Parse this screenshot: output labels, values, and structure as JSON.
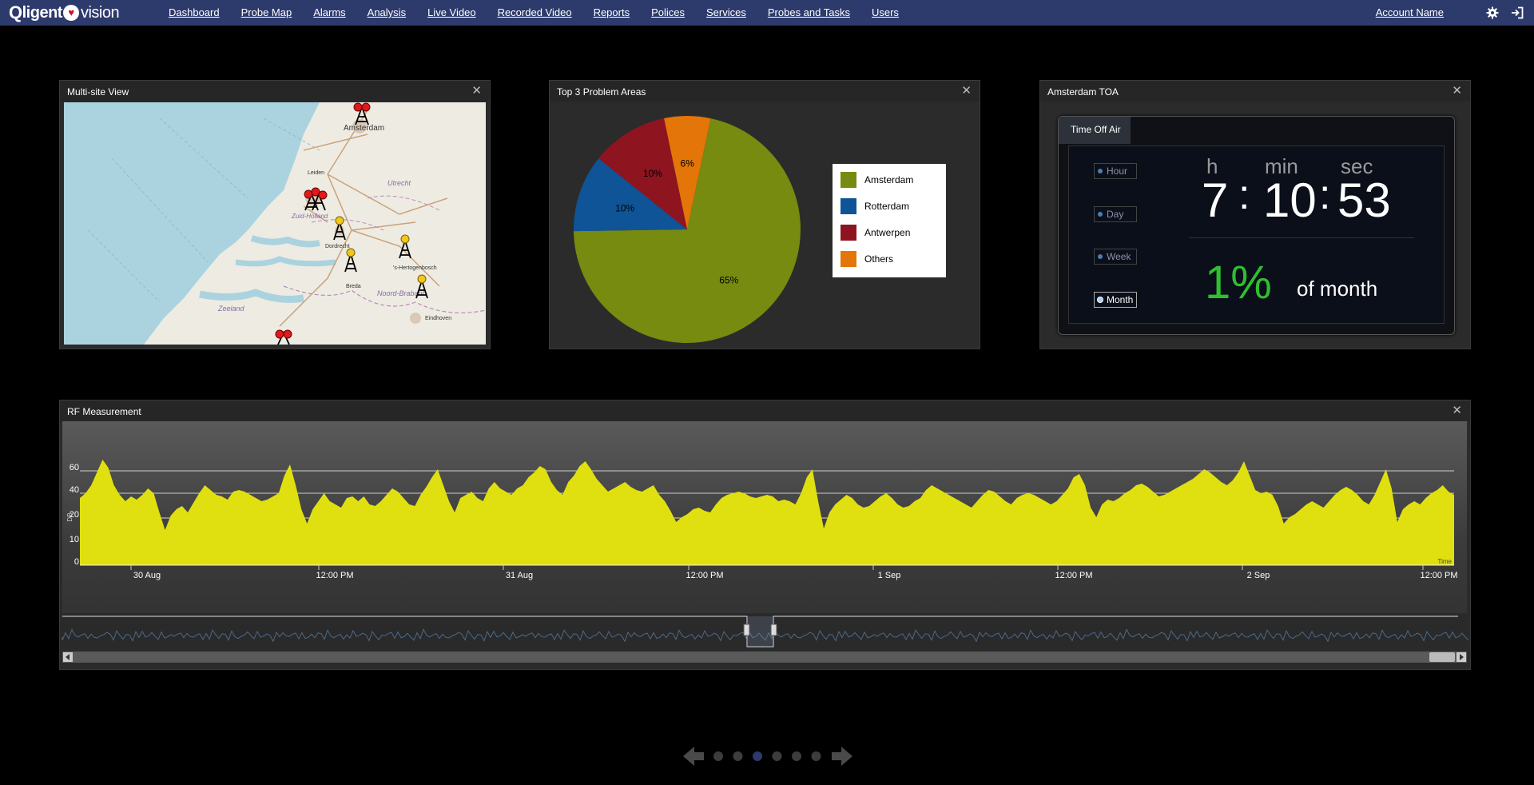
{
  "header": {
    "logo_q": "Q",
    "logo_ligent": "ligent",
    "logo_vision": "vision",
    "nav": [
      "Dashboard",
      "Probe Map",
      "Alarms",
      "Analysis",
      "Live Video",
      "Recorded Video",
      "Reports",
      "Polices",
      "Services",
      "Probes and Tasks",
      "Users"
    ],
    "account": "Account Name"
  },
  "panels": {
    "multisite": {
      "title": "Multi-site View",
      "places": [
        "Amsterdam",
        "Leiden",
        "Utrecht",
        "Zuid-Holland",
        "Dordrecht",
        "'s-Hertogenbosch",
        "Breda",
        "Noord-Brabant",
        "Zeeland",
        "Eindhoven"
      ]
    },
    "problems": {
      "title": "Top 3 Problem Areas"
    },
    "toa": {
      "title": "Amsterdam TOA",
      "tab": "Time Off Air",
      "options": [
        "Hour",
        "Day",
        "Week",
        "Month"
      ],
      "selected": "Month",
      "unit_h": "h",
      "unit_min": "min",
      "unit_sec": "sec",
      "hours": "7",
      "minutes": "10",
      "seconds": "53",
      "sep": ":",
      "percent": "1%",
      "of_period": "of month"
    },
    "rf": {
      "title": "RF Measurement"
    }
  },
  "chart_data": [
    {
      "type": "pie",
      "title": "",
      "categories": [
        "Amsterdam",
        "Rotterdam",
        "Antwerpen",
        "Others"
      ],
      "values": [
        65,
        10,
        10,
        6
      ],
      "labels": [
        "65%",
        "10%",
        "10%",
        "6%"
      ],
      "colors": [
        "#768b0f",
        "#0f5496",
        "#8e1420",
        "#e47509"
      ],
      "legend": "right"
    },
    {
      "type": "area",
      "title": "",
      "ylabel": "DB",
      "xlabel": "Time",
      "y_ticks": [
        0,
        10,
        20,
        40,
        60
      ],
      "x_ticks": [
        "30 Aug",
        "12:00 PM",
        "31 Aug",
        "12:00 PM",
        "1 Sep",
        "12:00 PM",
        "2 Sep",
        "12:00 PM"
      ],
      "ylim": [
        0,
        60
      ],
      "color": "#e0e010",
      "grid": true,
      "series": [
        {
          "values": [
            42,
            45,
            50,
            58,
            66,
            61,
            50,
            44,
            40,
            43,
            41,
            44,
            48,
            45,
            33,
            22,
            31,
            35,
            37,
            33,
            39,
            45,
            50,
            47,
            44,
            43,
            41,
            46,
            47,
            46,
            44,
            42,
            40,
            41,
            43,
            45,
            56,
            63,
            50,
            35,
            26,
            35,
            40,
            45,
            40,
            38,
            36,
            42,
            43,
            40,
            43,
            38,
            37,
            40,
            44,
            48,
            46,
            42,
            38,
            37,
            44,
            49,
            55,
            60,
            50,
            40,
            33,
            42,
            44,
            46,
            42,
            40,
            48,
            52,
            48,
            46,
            44,
            48,
            50,
            55,
            58,
            62,
            60,
            52,
            47,
            44,
            52,
            56,
            62,
            65,
            60,
            54,
            50,
            46,
            48,
            50,
            52,
            49,
            47,
            46,
            48,
            50,
            44,
            40,
            34,
            27,
            30,
            32,
            35,
            36,
            34,
            33,
            38,
            42,
            44,
            45,
            46,
            45,
            43,
            42,
            43,
            44,
            43,
            40,
            41,
            40,
            38,
            45,
            55,
            60,
            40,
            23,
            33,
            38,
            41,
            44,
            42,
            38,
            36,
            37,
            40,
            43,
            45,
            42,
            38,
            36,
            37,
            40,
            42,
            47,
            50,
            48,
            46,
            44,
            42,
            40,
            38,
            36,
            40,
            44,
            47,
            46,
            43,
            40,
            38,
            42,
            44,
            45,
            44,
            42,
            40,
            38,
            40,
            44,
            48,
            55,
            57,
            50,
            36,
            30,
            38,
            41,
            40,
            42,
            45,
            47,
            50,
            51,
            49,
            46,
            43,
            44,
            46,
            48,
            50,
            52,
            54,
            57,
            60,
            58,
            55,
            52,
            50,
            53,
            58,
            65,
            56,
            47,
            45,
            46,
            44,
            37,
            26,
            30,
            32,
            35,
            38,
            40,
            38,
            36,
            40,
            44,
            47,
            49,
            47,
            44,
            40,
            38,
            44,
            52,
            60,
            48,
            27,
            35,
            38,
            40,
            38,
            42,
            45,
            47,
            50,
            46,
            44
          ]
        }
      ]
    }
  ],
  "pager": {
    "dots": 6,
    "active": 2
  }
}
